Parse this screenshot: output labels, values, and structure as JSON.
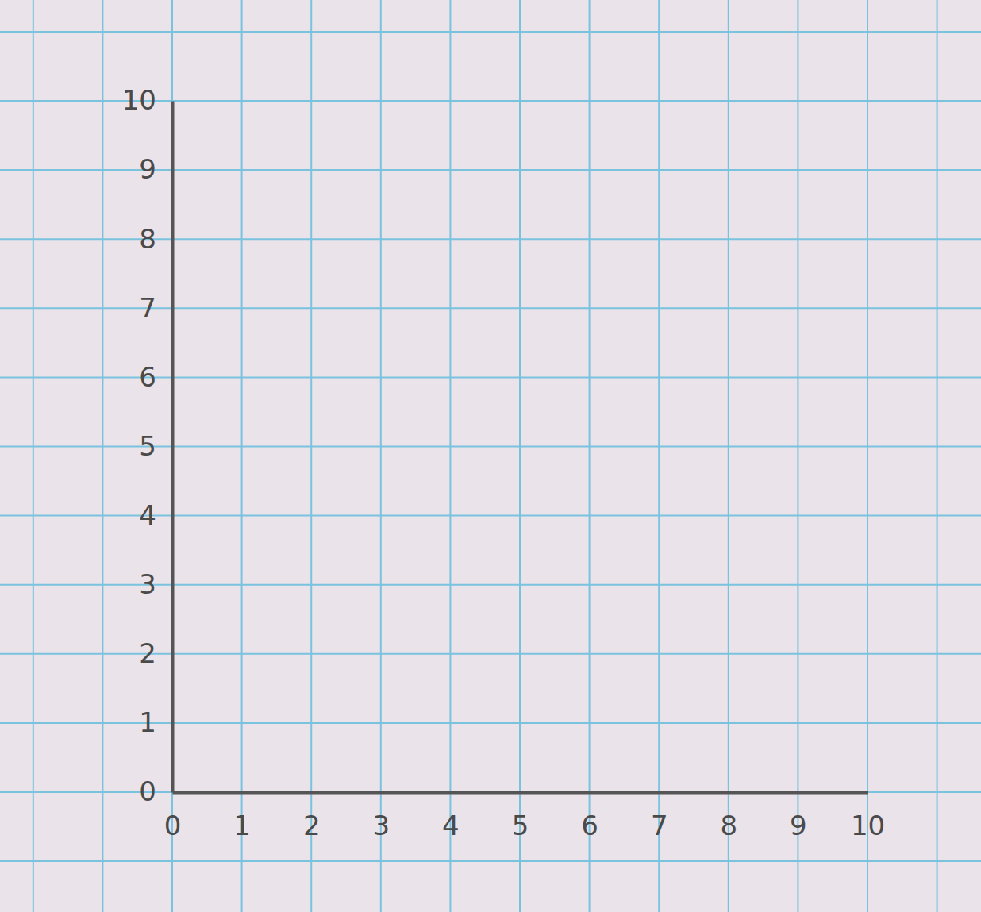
{
  "chart_data": {
    "type": "scatter",
    "xlim": [
      0,
      10
    ],
    "xticks": [
      0,
      1,
      2,
      3,
      4,
      5,
      6,
      7,
      8,
      9,
      10
    ],
    "ylim": [
      0,
      10
    ],
    "yticks": [
      0,
      1,
      2,
      3,
      4,
      5,
      6,
      7,
      8,
      9,
      10
    ],
    "grid": true
  }
}
